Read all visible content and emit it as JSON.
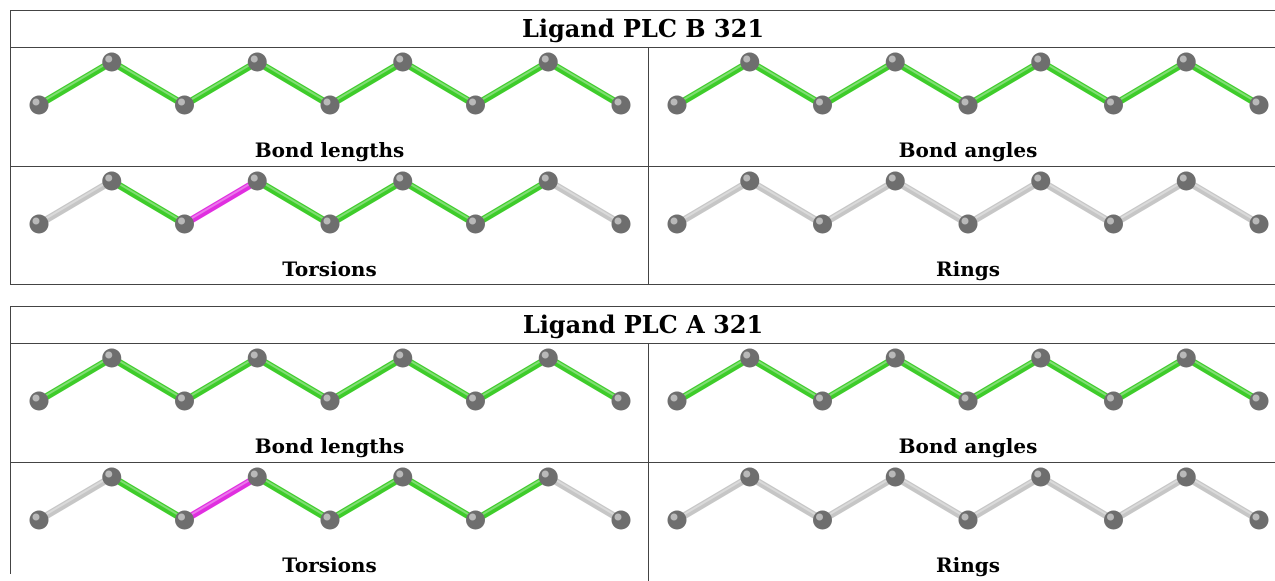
{
  "colors": {
    "ok": "#3ecc2a",
    "flag": "#e02ee0",
    "none": "#c6c6c6",
    "atom": "#6e6e6e"
  },
  "ligands": [
    {
      "title": "Ligand PLC B 321",
      "panels": [
        {
          "caption": "Bond lengths",
          "bonds": [
            "ok",
            "ok",
            "ok",
            "ok",
            "ok",
            "ok",
            "ok",
            "ok"
          ]
        },
        {
          "caption": "Bond angles",
          "bonds": [
            "ok",
            "ok",
            "ok",
            "ok",
            "ok",
            "ok",
            "ok",
            "ok"
          ]
        },
        {
          "caption": "Torsions",
          "bonds": [
            "none",
            "ok",
            "flag",
            "ok",
            "ok",
            "ok",
            "ok",
            "none"
          ]
        },
        {
          "caption": "Rings",
          "bonds": [
            "none",
            "none",
            "none",
            "none",
            "none",
            "none",
            "none",
            "none"
          ]
        }
      ]
    },
    {
      "title": "Ligand PLC A 321",
      "panels": [
        {
          "caption": "Bond lengths",
          "bonds": [
            "ok",
            "ok",
            "ok",
            "ok",
            "ok",
            "ok",
            "ok",
            "ok"
          ]
        },
        {
          "caption": "Bond angles",
          "bonds": [
            "ok",
            "ok",
            "ok",
            "ok",
            "ok",
            "ok",
            "ok",
            "ok"
          ]
        },
        {
          "caption": "Torsions",
          "bonds": [
            "none",
            "ok",
            "flag",
            "ok",
            "ok",
            "ok",
            "ok",
            "none"
          ]
        },
        {
          "caption": "Rings",
          "bonds": [
            "none",
            "none",
            "none",
            "none",
            "none",
            "none",
            "none",
            "none"
          ]
        }
      ]
    }
  ]
}
